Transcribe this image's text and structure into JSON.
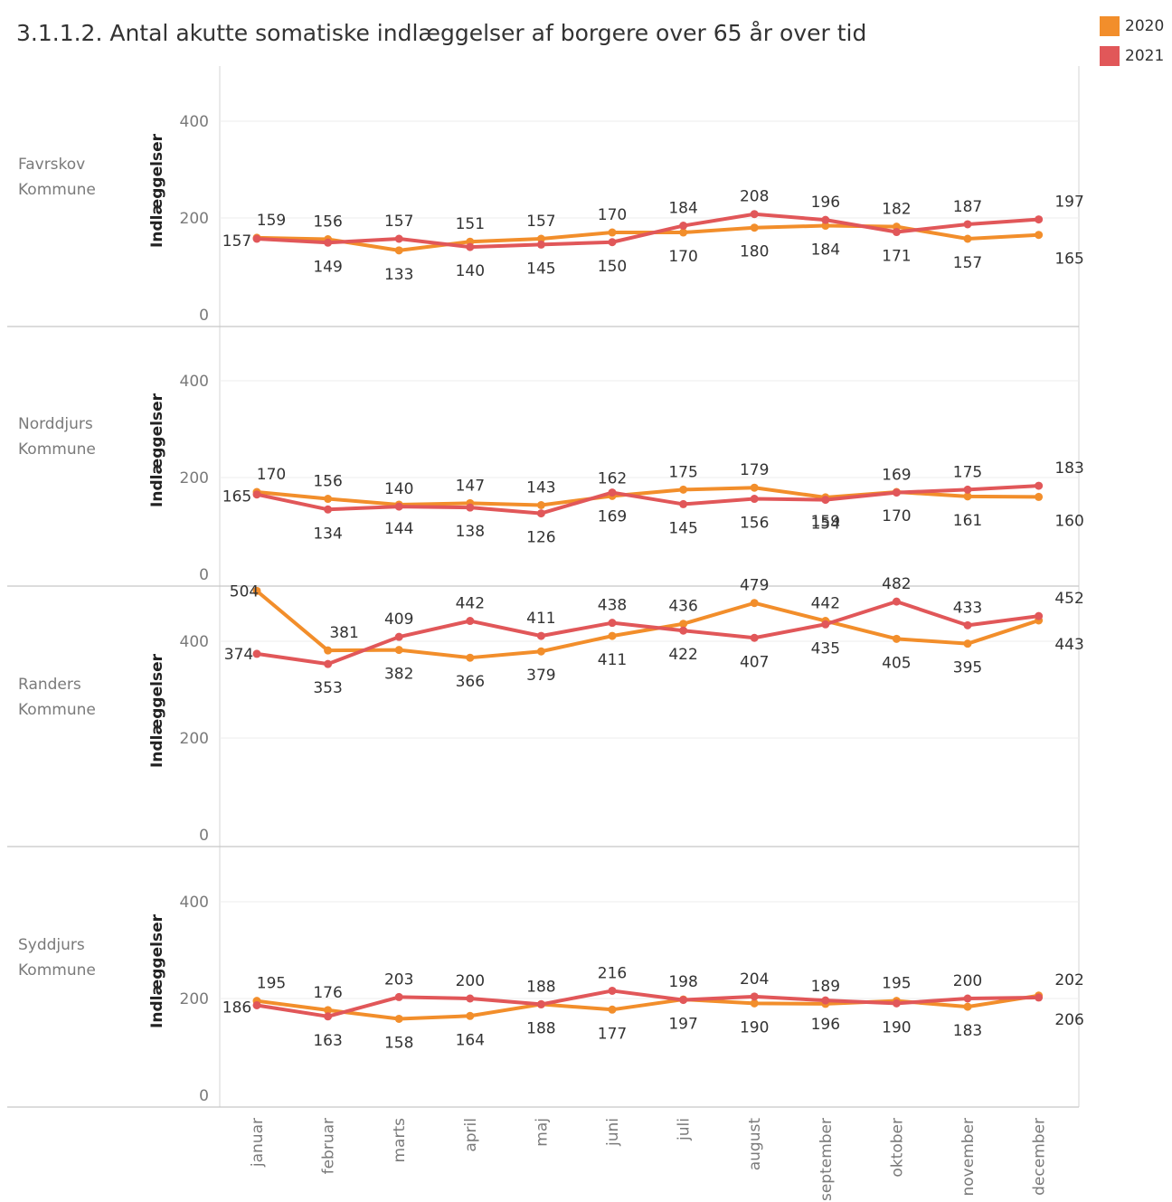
{
  "chart_data": {
    "type": "line",
    "title": "3.1.1.2. Antal akutte somatiske indlæggelser af borgere over 65 år over tid",
    "categories": [
      "januar",
      "februar",
      "marts",
      "april",
      "maj",
      "juni",
      "juli",
      "august",
      "september",
      "oktober",
      "november",
      "december"
    ],
    "ylabel": "Indlæggelser",
    "ylim": [
      0,
      520
    ],
    "yticks": [
      0,
      200,
      400
    ],
    "grid": true,
    "legend": {
      "position": "top-right",
      "items": [
        {
          "label": "2020",
          "color": "#f28e2b"
        },
        {
          "label": "2021",
          "color": "#e15759"
        }
      ]
    },
    "panels": [
      {
        "row_label": [
          "Favrskov",
          "Kommune"
        ],
        "series": [
          {
            "name": "2020",
            "color": "#f28e2b",
            "values": [
              159,
              156,
              133,
              151,
              157,
              170,
              170,
              180,
              184,
              182,
              157,
              165
            ]
          },
          {
            "name": "2021",
            "color": "#e15759",
            "values": [
              157,
              149,
              157,
              140,
              145,
              150,
              184,
              208,
              196,
              171,
              187,
              197
            ]
          }
        ]
      },
      {
        "row_label": [
          "Norddjurs",
          "Kommune"
        ],
        "series": [
          {
            "name": "2020",
            "color": "#f28e2b",
            "values": [
              170,
              156,
              144,
              147,
              143,
              162,
              175,
              179,
              159,
              170,
              161,
              160
            ]
          },
          {
            "name": "2021",
            "color": "#e15759",
            "values": [
              165,
              134,
              140,
              138,
              126,
              169,
              145,
              156,
              154,
              169,
              175,
              183
            ]
          }
        ]
      },
      {
        "row_label": [
          "Randers",
          "Kommune"
        ],
        "series": [
          {
            "name": "2020",
            "color": "#f28e2b",
            "values": [
              504,
              381,
              382,
              366,
              379,
              411,
              436,
              479,
              442,
              405,
              395,
              443
            ]
          },
          {
            "name": "2021",
            "color": "#e15759",
            "values": [
              374,
              353,
              409,
              442,
              411,
              438,
              422,
              407,
              435,
              482,
              433,
              452
            ]
          }
        ]
      },
      {
        "row_label": [
          "Syddjurs",
          "Kommune"
        ],
        "series": [
          {
            "name": "2020",
            "color": "#f28e2b",
            "values": [
              195,
              176,
              158,
              164,
              188,
              177,
              198,
              190,
              189,
              195,
              183,
              206
            ]
          },
          {
            "name": "2021",
            "color": "#e15759",
            "values": [
              186,
              163,
              203,
              200,
              188,
              216,
              197,
              204,
              196,
              190,
              200,
              202
            ]
          }
        ]
      }
    ]
  }
}
